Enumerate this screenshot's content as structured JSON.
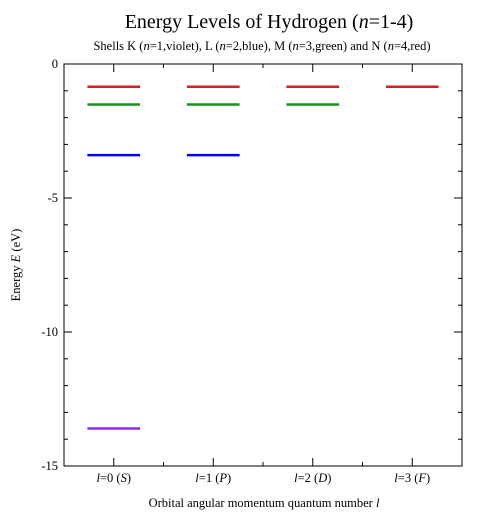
{
  "chart_data": {
    "type": "scatter",
    "title_parts": [
      {
        "text": "Energy Levels of Hydrogen (",
        "italic": false
      },
      {
        "text": "n",
        "italic": true
      },
      {
        "text": "=1-4)",
        "italic": false
      }
    ],
    "subtitle_parts": [
      {
        "text": "Shells K (",
        "italic": false
      },
      {
        "text": "n",
        "italic": true
      },
      {
        "text": "=1,violet), L (",
        "italic": false
      },
      {
        "text": "n",
        "italic": true
      },
      {
        "text": "=2,blue), M (",
        "italic": false
      },
      {
        "text": "n",
        "italic": true
      },
      {
        "text": "=3,green) and N (",
        "italic": false
      },
      {
        "text": "n",
        "italic": true
      },
      {
        "text": "=4,red)",
        "italic": false
      }
    ],
    "xlabel_parts": [
      {
        "text": "Orbital angular momentum quantum number ",
        "italic": false
      },
      {
        "text": "l",
        "italic": true
      }
    ],
    "ylabel_parts": [
      {
        "text": "Energy ",
        "italic": false
      },
      {
        "text": "E",
        "italic": true
      },
      {
        "text": " (eV)",
        "italic": false
      }
    ],
    "categories": [
      [
        {
          "text": "l",
          "italic": true
        },
        {
          "text": "=0 (",
          "italic": false
        },
        {
          "text": "S",
          "italic": true
        },
        {
          "text": ")",
          "italic": false
        }
      ],
      [
        {
          "text": "l",
          "italic": true
        },
        {
          "text": "=1 (",
          "italic": false
        },
        {
          "text": "P",
          "italic": true
        },
        {
          "text": ")",
          "italic": false
        }
      ],
      [
        {
          "text": "l",
          "italic": true
        },
        {
          "text": "=2 (",
          "italic": false
        },
        {
          "text": "D",
          "italic": true
        },
        {
          "text": ")",
          "italic": false
        }
      ],
      [
        {
          "text": "l",
          "italic": true
        },
        {
          "text": "=3 (",
          "italic": false
        },
        {
          "text": "F",
          "italic": true
        },
        {
          "text": ")",
          "italic": false
        }
      ]
    ],
    "ylim": [
      -15,
      0
    ],
    "yticks": [
      0,
      -5,
      -10,
      -15
    ],
    "ytick_labels": [
      "0",
      "-5",
      "-10",
      "-15"
    ],
    "grid": false,
    "levels": [
      {
        "n": 1,
        "color": "#8a2be2",
        "energy": -13.6,
        "l_values": [
          0
        ]
      },
      {
        "n": 2,
        "color": "#0000ff",
        "energy": -3.4,
        "l_values": [
          0,
          1
        ]
      },
      {
        "n": 3,
        "color": "#1f8f1f",
        "energy": -1.51,
        "l_values": [
          0,
          1,
          2
        ]
      },
      {
        "n": 4,
        "color": "#e41a1c",
        "energy": -0.85,
        "l_values": [
          0,
          1,
          2,
          3
        ]
      }
    ]
  }
}
